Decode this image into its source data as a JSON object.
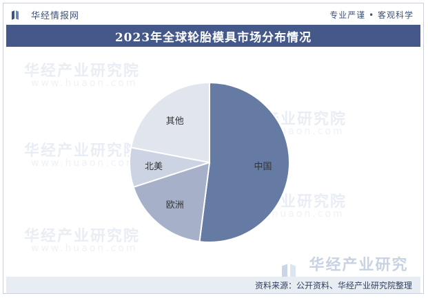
{
  "header": {
    "brand": "华经情报网",
    "tagline": "专业严谨 • 客观科学"
  },
  "watermark": {
    "text": "华经产业研究院",
    "sub": "www.huaon.com"
  },
  "footer": {
    "brand": "华经产业研究院",
    "source": "资料来源：公开资料、华经产业研究院整理"
  },
  "chart_data": {
    "type": "pie",
    "title": "2023年全球轮胎模具市场分布情况",
    "categories": [
      "中国",
      "欧洲",
      "北美",
      "其他"
    ],
    "values": [
      52,
      18,
      8,
      22
    ],
    "start": "12 o'clock",
    "direction": "clockwise",
    "legend": "none",
    "colors": [
      "#667ba3",
      "#a6b1c9",
      "#ccd3e2",
      "#e1e5ee"
    ]
  }
}
